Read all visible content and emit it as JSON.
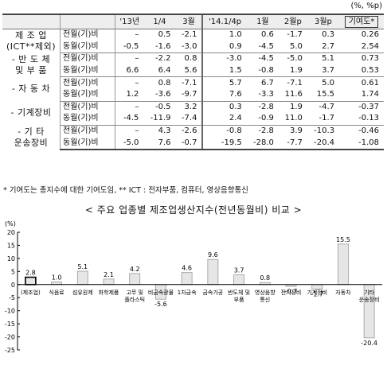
{
  "unit_label": "(%, %p)",
  "table": {
    "headers": [
      "'13년",
      "1/4",
      "3월",
      "'14.1/4p",
      "1월",
      "2월p",
      "3월p",
      "기여도*"
    ],
    "highlight_header_index": 7,
    "groups": [
      {
        "category": [
          "제 조 업",
          "(ICT**제외)"
        ],
        "rows": [
          {
            "label": "전월(기)비",
            "values": [
              "–",
              "0.5",
              "-2.1",
              "1.0",
              "0.6",
              "-1.7",
              "0.3",
              "0.26"
            ]
          },
          {
            "label": "동월(기)비",
            "values": [
              "-0.5",
              "-1.6",
              "-3.0",
              "0.9",
              "-4.5",
              "5.0",
              "2.7",
              "2.54"
            ]
          }
        ]
      },
      {
        "category": [
          "- 반 도 체",
          "및 부 품"
        ],
        "rows": [
          {
            "label": "전월(기)비",
            "values": [
              "–",
              "-2.2",
              "0.8",
              "-3.0",
              "-4.5",
              "-5.0",
              "5.1",
              "0.73"
            ]
          },
          {
            "label": "동월(기)비",
            "values": [
              "6.6",
              "6.4",
              "5.6",
              "1.5",
              "-0.8",
              "1.9",
              "3.7",
              "0.53"
            ]
          }
        ]
      },
      {
        "category": [
          "- 자 동 차"
        ],
        "rows": [
          {
            "label": "전월(기)비",
            "values": [
              "–",
              "0.8",
              "-7.1",
              "5.7",
              "6.7",
              "-7.1",
              "5.0",
              "0.61"
            ]
          },
          {
            "label": "동월(기)비",
            "values": [
              "1.2",
              "-3.6",
              "-9.7",
              "7.6",
              "-3.3",
              "11.6",
              "15.5",
              "1.74"
            ]
          }
        ]
      },
      {
        "category": [
          "- 기계장비"
        ],
        "rows": [
          {
            "label": "전월(기)비",
            "values": [
              "–",
              "-0.5",
              "3.2",
              "0.3",
              "-2.8",
              "1.9",
              "-4.7",
              "-0.37"
            ]
          },
          {
            "label": "동월(기)비",
            "values": [
              "-4.5",
              "-11.9",
              "-7.4",
              "2.4",
              "-0.9",
              "11.0",
              "-1.7",
              "-0.13"
            ]
          }
        ]
      },
      {
        "category": [
          "- 기 타",
          "운송장비"
        ],
        "rows": [
          {
            "label": "전월(기)비",
            "values": [
              "–",
              "4.3",
              "-2.6",
              "-0.8",
              "-2.8",
              "3.9",
              "-10.3",
              "-0.46"
            ]
          },
          {
            "label": "동월(기)비",
            "values": [
              "-5.0",
              "7.6",
              "-0.7",
              "-19.5",
              "-28.0",
              "-7.7",
              "-20.4",
              "-1.08"
            ]
          }
        ]
      }
    ]
  },
  "footnote": "* 기여도는 총지수에 대한 기여도임, ** ICT : 전자부품, 컴퓨터, 영상음향통신",
  "chart_title": "< 주요 업종별 제조업생산지수(전년동월비) 비교 >",
  "chart_data": {
    "type": "bar",
    "unit_label": "(%)",
    "categories": [
      "(제조업)",
      "식음료",
      "섬유원제",
      "화학제품",
      "고무 및 플라스틱",
      "비금속광물",
      "1차금속",
      "금속가공",
      "반도체 및 부품",
      "영상음향 통신",
      "전기장비",
      "기계장비",
      "자동차",
      "기타 운송장비"
    ],
    "values": [
      2.8,
      1.0,
      5.1,
      2.1,
      4.2,
      -5.6,
      4.6,
      9.6,
      3.7,
      0.8,
      -0.7,
      -1.7,
      15.5,
      -20.4
    ],
    "highlight_index": 0,
    "ylim": [
      -25,
      20
    ],
    "yticks": [
      20,
      15,
      10,
      5,
      0,
      -5,
      -10,
      -15,
      -20,
      -25
    ],
    "colors": {
      "bar_fill": "#e6e6e6",
      "bar_stroke": "#999999",
      "highlight_stroke": "#000000"
    }
  }
}
